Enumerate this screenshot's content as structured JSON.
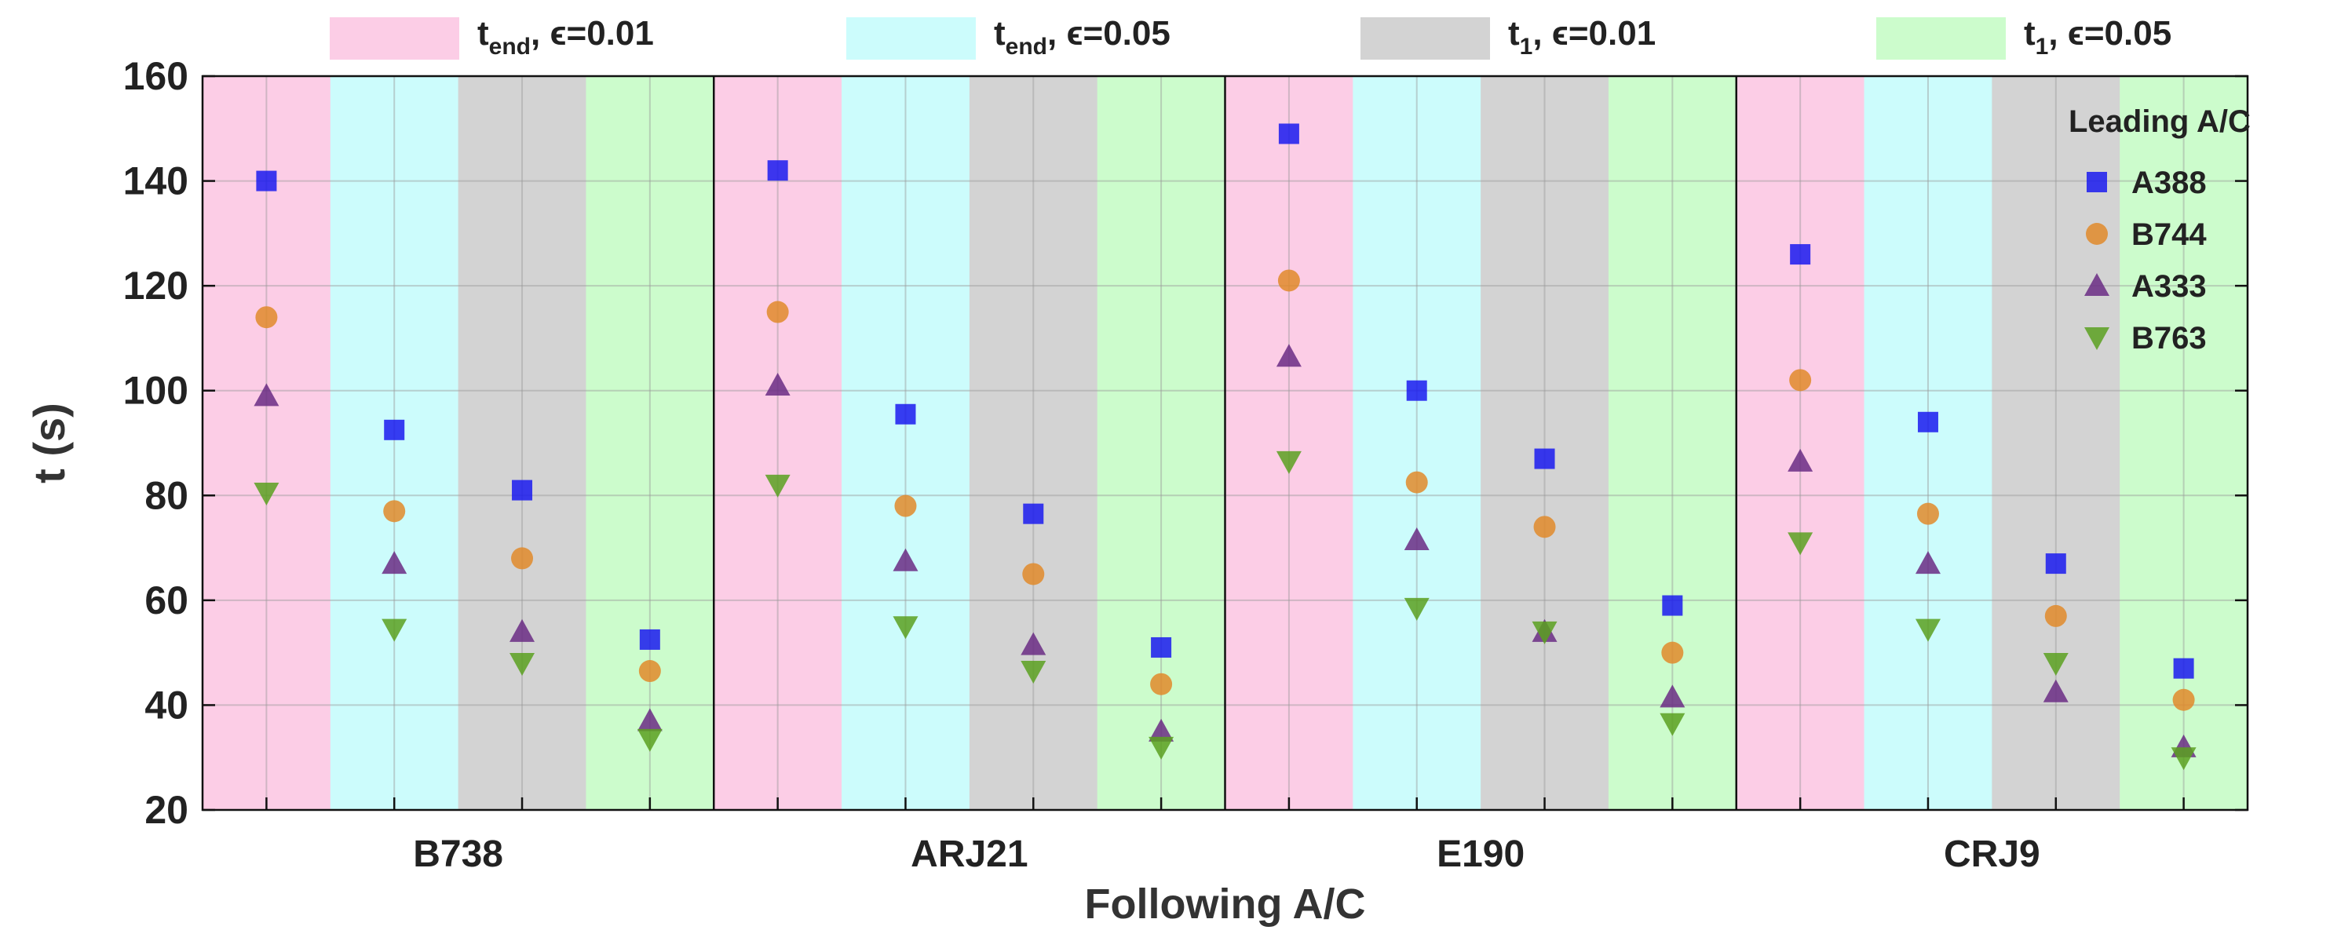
{
  "chart_data": {
    "type": "scatter",
    "xlabel": "Following A/C",
    "ylabel": "t (s)",
    "ylim": [
      20,
      160
    ],
    "yticks": [
      20,
      40,
      60,
      80,
      100,
      120,
      140,
      160
    ],
    "grid": true,
    "categories": [
      "B738",
      "ARJ21",
      "E190",
      "CRJ9"
    ],
    "conditions": [
      {
        "label_main": "t",
        "label_sub": "end",
        "label_tail": ", ϵ=0.01",
        "color": "#fccde6"
      },
      {
        "label_main": "t",
        "label_sub": "end",
        "label_tail": ", ϵ=0.05",
        "color": "#ccfcfc"
      },
      {
        "label_main": "t",
        "label_sub": "1",
        "label_tail": ", ϵ=0.01",
        "color": "#d3d3d3"
      },
      {
        "label_main": "t",
        "label_sub": "1",
        "label_tail": ", ϵ=0.05",
        "color": "#ccfccc"
      }
    ],
    "legend": {
      "title": "Leading A/C",
      "placement": "top-right"
    },
    "series": [
      {
        "name": "A388",
        "marker": "square",
        "color": "#1a1aee",
        "values": [
          [
            140,
            92.5,
            81,
            52.5
          ],
          [
            142,
            95.5,
            76.5,
            51
          ],
          [
            149,
            100,
            87,
            59
          ],
          [
            126,
            94,
            67,
            47
          ]
        ]
      },
      {
        "name": "B744",
        "marker": "circle",
        "color": "#e08a2a",
        "values": [
          [
            114,
            77,
            68,
            46.5
          ],
          [
            115,
            78,
            65,
            44
          ],
          [
            121,
            82.5,
            74,
            50
          ],
          [
            102,
            76.5,
            57,
            41
          ]
        ]
      },
      {
        "name": "A333",
        "marker": "triangle-up",
        "color": "#6a2c84",
        "values": [
          [
            99,
            67,
            54,
            37
          ],
          [
            101,
            67.5,
            51.5,
            35
          ],
          [
            106.5,
            71.5,
            54,
            41.5
          ],
          [
            86.5,
            67,
            42.5,
            32
          ]
        ]
      },
      {
        "name": "B763",
        "marker": "triangle-down",
        "color": "#5aa020",
        "values": [
          [
            80.5,
            54.5,
            48,
            33.5
          ],
          [
            82,
            55,
            46.5,
            32
          ],
          [
            86.5,
            58.5,
            54,
            36.5
          ],
          [
            71,
            54.5,
            48,
            30
          ]
        ]
      }
    ]
  }
}
